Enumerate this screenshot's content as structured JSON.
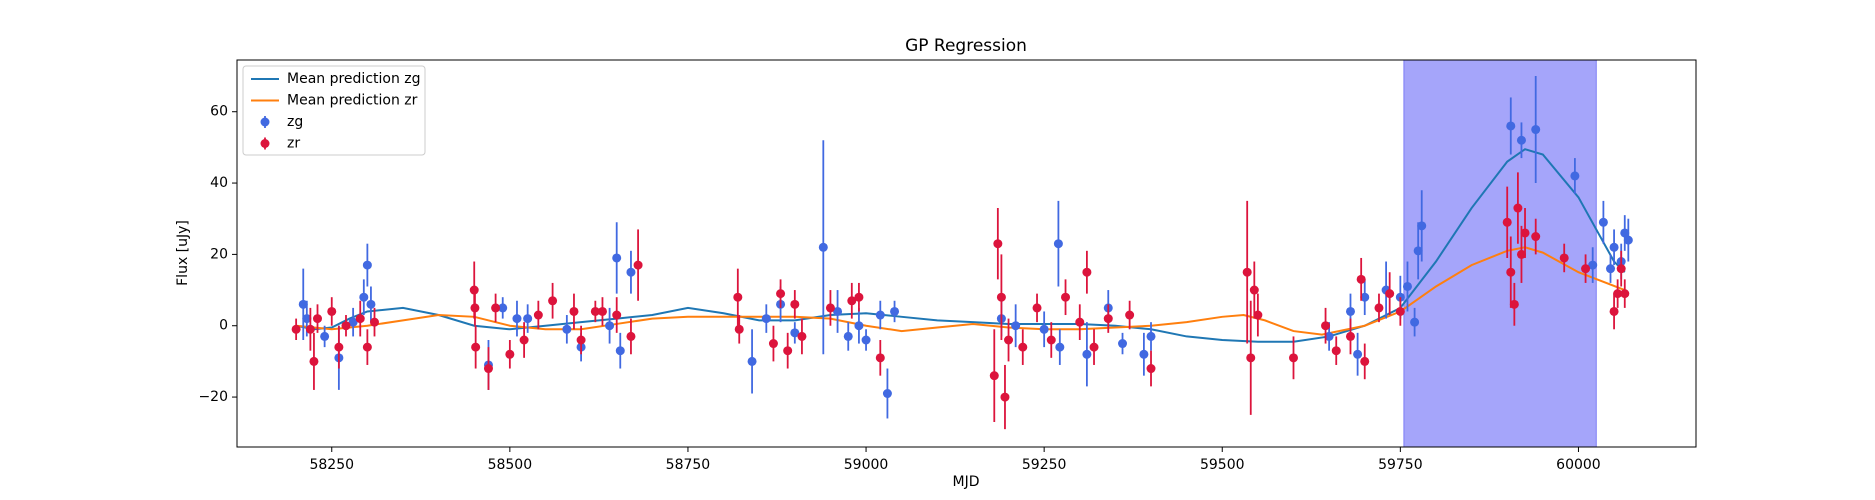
{
  "chart_data": {
    "type": "scatter",
    "title": "GP Regression",
    "xlabel": "MJD",
    "ylabel": "Flux [uJy]",
    "xlim": [
      58117,
      60165
    ],
    "ylim": [
      -34,
      74.5
    ],
    "xticks": [
      58250,
      58500,
      58750,
      59000,
      59250,
      59500,
      59750,
      60000
    ],
    "yticks": [
      {
        "value": -20,
        "label": "−20"
      },
      0,
      20,
      40,
      60
    ],
    "legend": "upper left",
    "span": {
      "x": [
        59755,
        60025
      ],
      "color": "#a5a5fa"
    },
    "series": [
      {
        "name": "Mean prediction zg",
        "mark": "line",
        "color": "#1f77b4",
        "x": [
          58200,
          58225,
          58250,
          58275,
          58300,
          58350,
          58400,
          58450,
          58500,
          58550,
          58600,
          58650,
          58700,
          58750,
          58800,
          58850,
          58900,
          58950,
          59000,
          59050,
          59100,
          59150,
          59200,
          59250,
          59300,
          59350,
          59400,
          59450,
          59500,
          59550,
          59600,
          59650,
          59700,
          59750,
          59800,
          59850,
          59900,
          59925,
          59950,
          60000,
          60025,
          60050,
          60065
        ],
        "values": [
          0,
          -1,
          -0.5,
          2,
          4,
          5,
          3,
          0,
          -1,
          0,
          1,
          2,
          3,
          5,
          3.5,
          1.5,
          1.5,
          3,
          3.5,
          2.5,
          1.5,
          1,
          0.5,
          0.5,
          0.5,
          0,
          -1,
          -3,
          -4,
          -4.5,
          -4.5,
          -3,
          0,
          5,
          18,
          33,
          46,
          49.5,
          48,
          36,
          27,
          18,
          15
        ]
      },
      {
        "name": "Mean prediction zr",
        "mark": "line",
        "color": "#ff7f0e",
        "x": [
          58200,
          58250,
          58300,
          58350,
          58400,
          58450,
          58500,
          58550,
          58600,
          58650,
          58700,
          58750,
          58800,
          58850,
          58900,
          58950,
          59000,
          59050,
          59100,
          59150,
          59200,
          59250,
          59300,
          59350,
          59400,
          59450,
          59500,
          59530,
          59560,
          59600,
          59640,
          59700,
          59750,
          59800,
          59850,
          59900,
          59925,
          59950,
          60000,
          60065
        ],
        "values": [
          0,
          -1,
          0,
          1.5,
          3,
          2.5,
          0,
          -1,
          -1,
          0.5,
          2,
          2.5,
          2.5,
          2.5,
          2.5,
          2,
          0,
          -1.5,
          -0.5,
          0.5,
          -0.5,
          -1,
          -1,
          -0.5,
          0,
          1,
          2.5,
          3,
          1.5,
          -1.5,
          -2.5,
          0,
          4,
          11,
          17,
          21,
          22,
          20.5,
          15,
          10
        ]
      },
      {
        "name": "zg",
        "mark": "errorbar",
        "color": "#4169e1",
        "x": [
          58210,
          58215,
          58240,
          58260,
          58280,
          58295,
          58300,
          58305,
          58470,
          58490,
          58510,
          58525,
          58580,
          58600,
          58640,
          58650,
          58655,
          58670,
          58840,
          58860,
          58880,
          58900,
          58940,
          58960,
          58975,
          58990,
          59000,
          59020,
          59030,
          59040,
          59190,
          59210,
          59250,
          59270,
          59272,
          59310,
          59340,
          59360,
          59390,
          59400,
          59650,
          59680,
          59690,
          59700,
          59730,
          59750,
          59760,
          59770,
          59775,
          59780,
          59905,
          59920,
          59940,
          59995,
          60020,
          60035,
          60045,
          60050,
          60060,
          60065,
          60070
        ],
        "values": [
          6,
          2,
          -3,
          -9,
          1,
          8,
          17,
          6,
          -11,
          5,
          2,
          2,
          -1,
          -6,
          0,
          19,
          -7,
          15,
          -10,
          2,
          6,
          -2,
          22,
          4,
          -3,
          0,
          -4,
          3,
          -19,
          4,
          2,
          0,
          -1,
          23,
          -6,
          -8,
          5,
          -5,
          -8,
          -3,
          -3,
          4,
          -8,
          8,
          10,
          8,
          11,
          1,
          21,
          28,
          56,
          52,
          55,
          42,
          17,
          29,
          16,
          22,
          18,
          26,
          24
        ],
        "errors": [
          10,
          5,
          3,
          9,
          4,
          5,
          6,
          5,
          7,
          3,
          5,
          4,
          4,
          4,
          5,
          10,
          5,
          6,
          9,
          4,
          5,
          3,
          30,
          6,
          4,
          5,
          3,
          4,
          7,
          3,
          5,
          6,
          5,
          12,
          5,
          9,
          5,
          3,
          6,
          4,
          4,
          5,
          6,
          5,
          8,
          6,
          7,
          4,
          8,
          10,
          8,
          5,
          15,
          5,
          5,
          6,
          4,
          5,
          5,
          5,
          6
        ]
      },
      {
        "name": "zr",
        "mark": "errorbar",
        "color": "#dc143c",
        "x": [
          58200,
          58220,
          58225,
          58230,
          58250,
          58260,
          58270,
          58290,
          58300,
          58310,
          58450,
          58451,
          58452,
          58470,
          58480,
          58500,
          58520,
          58540,
          58560,
          58590,
          58600,
          58620,
          58630,
          58650,
          58670,
          58680,
          58820,
          58822,
          58870,
          58880,
          58890,
          58900,
          58910,
          58950,
          58980,
          58990,
          59020,
          59180,
          59185,
          59190,
          59195,
          59200,
          59220,
          59240,
          59260,
          59280,
          59300,
          59310,
          59320,
          59340,
          59370,
          59400,
          59535,
          59540,
          59545,
          59550,
          59600,
          59645,
          59660,
          59680,
          59695,
          59700,
          59720,
          59735,
          59750,
          59900,
          59905,
          59910,
          59915,
          59920,
          59925,
          59940,
          59980,
          60010,
          60050,
          60055,
          60060,
          60065
        ],
        "values": [
          -1,
          -1,
          -10,
          2,
          4,
          -6,
          0,
          2,
          -6,
          1,
          10,
          5,
          -6,
          -12,
          5,
          -8,
          -4,
          3,
          7,
          4,
          -4,
          4,
          4,
          3,
          -3,
          17,
          8,
          -1,
          -5,
          9,
          -7,
          6,
          -3,
          5,
          7,
          8,
          -9,
          -14,
          23,
          8,
          -20,
          -4,
          -6,
          5,
          -4,
          8,
          1,
          15,
          -6,
          2,
          3,
          -12,
          15,
          -9,
          10,
          3,
          -9,
          0,
          -7,
          -3,
          13,
          -10,
          5,
          9,
          4,
          29,
          15,
          6,
          33,
          20,
          26,
          25,
          19,
          16,
          4,
          9,
          16,
          9
        ],
        "errors": [
          3,
          6,
          8,
          4,
          4,
          6,
          3,
          5,
          5,
          4,
          8,
          5,
          6,
          6,
          4,
          4,
          5,
          4,
          5,
          5,
          4,
          3,
          4,
          5,
          5,
          10,
          8,
          4,
          5,
          4,
          5,
          4,
          5,
          5,
          5,
          4,
          5,
          13,
          10,
          12,
          9,
          6,
          5,
          4,
          5,
          5,
          5,
          6,
          5,
          4,
          4,
          5,
          20,
          16,
          8,
          6,
          6,
          5,
          4,
          5,
          6,
          5,
          4,
          6,
          4,
          10,
          10,
          6,
          10,
          8,
          7,
          5,
          4,
          4,
          5,
          4,
          5,
          4
        ]
      }
    ]
  }
}
